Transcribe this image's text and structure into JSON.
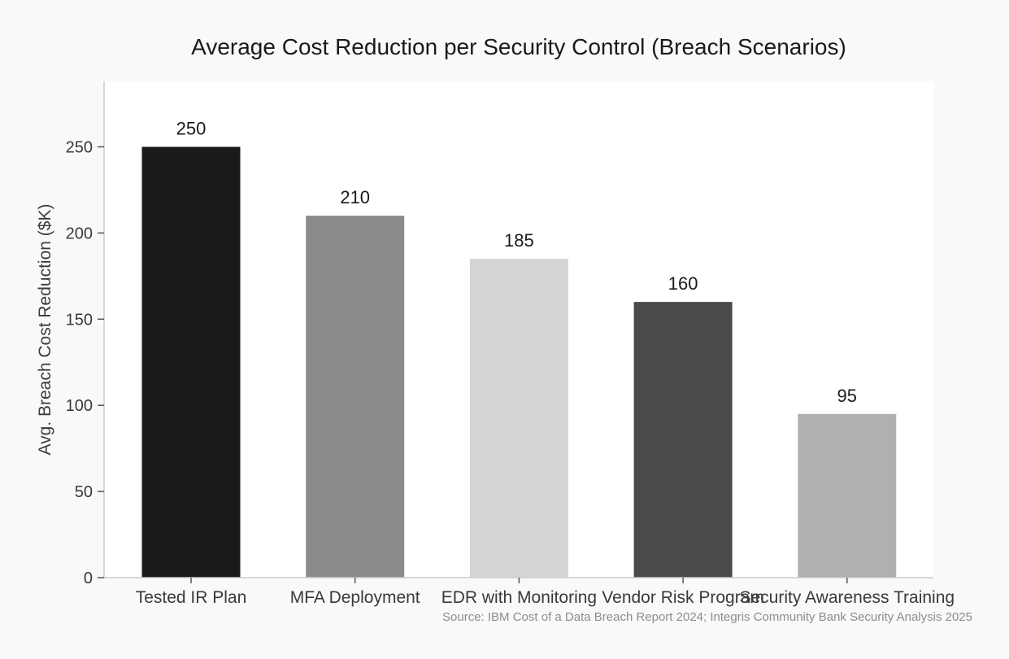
{
  "chart_data": {
    "type": "bar",
    "title": "Average Cost Reduction per Security Control (Breach Scenarios)",
    "xlabel": "",
    "ylabel": "Avg. Breach Cost Reduction ($K)",
    "categories": [
      "Tested IR Plan",
      "MFA Deployment",
      "EDR with Monitoring",
      "Vendor Risk Program",
      "Security Awareness Training"
    ],
    "values": [
      250,
      210,
      185,
      160,
      95
    ],
    "value_labels": [
      "250",
      "210",
      "185",
      "160",
      "95"
    ],
    "colors": [
      "#1a1a1a",
      "#8a8a8a",
      "#d4d4d4",
      "#4a4a4a",
      "#b0b0b0"
    ],
    "ylim": [
      0,
      288
    ],
    "yticks": [
      0,
      50,
      100,
      150,
      200,
      250
    ],
    "ytick_labels": [
      "0",
      "50",
      "100",
      "150",
      "200",
      "250"
    ],
    "grid": false,
    "legend": "none"
  },
  "source_note": "Source: IBM Cost of a Data Breach Report 2024; Integris Community Bank Security Analysis 2025",
  "colors": {
    "page_background": "#f9f9f9",
    "plot_background": "#ffffff",
    "axis": "#cccccc"
  }
}
